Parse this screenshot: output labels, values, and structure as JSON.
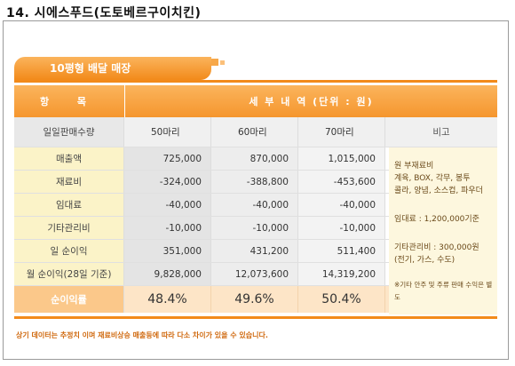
{
  "heading": "14.  시에스푸드(도토베르구이치킨)",
  "tab_title": "10평형 배달 매장",
  "header": {
    "col_item": "항 목",
    "col_detail": "세 부 내 역 (단위 : 원)"
  },
  "subheader": {
    "label": "일일판매수량",
    "c1": "50마리",
    "c2": "60마리",
    "c3": "70마리",
    "note": "비고"
  },
  "rows": [
    {
      "label": "매출액",
      "v1": "725,000",
      "v2": "870,000",
      "v3": "1,015,000"
    },
    {
      "label": "재료비",
      "v1": "-324,000",
      "v2": "-388,800",
      "v3": "-453,600"
    },
    {
      "label": "임대료",
      "v1": "-40,000",
      "v2": "-40,000",
      "v3": "-40,000"
    },
    {
      "label": "기타관리비",
      "v1": "-10,000",
      "v2": "-10,000",
      "v3": "-10,000"
    },
    {
      "label": "일 순이익",
      "v1": "351,000",
      "v2": "431,200",
      "v3": "511,400"
    },
    {
      "label": "월 순이익(28일 기준)",
      "v1": "9,828,000",
      "v2": "12,073,600",
      "v3": "14,319,200"
    }
  ],
  "profit": {
    "label": "순이익률",
    "v1": "48.4%",
    "v2": "49.6%",
    "v3": "50.4%"
  },
  "notes": {
    "n1_title": "원 부재료비",
    "n1_line1": "계육, BOX, 각무, 봉투",
    "n1_line2": "콜라, 양념, 소스컵, 파우더",
    "n2": "임대료 :  1,200,000기준",
    "n3_line1": "기타관리비 : 300,000원",
    "n3_line2": "(전기, 가스, 수도)",
    "n4": "※기타 안주 및 주류 판매 수익은 별도"
  },
  "footer": "상기 데이터는 추정치 이며 재료비상승 매출등에 따라 다소 차이가 있을 수 있습니다."
}
